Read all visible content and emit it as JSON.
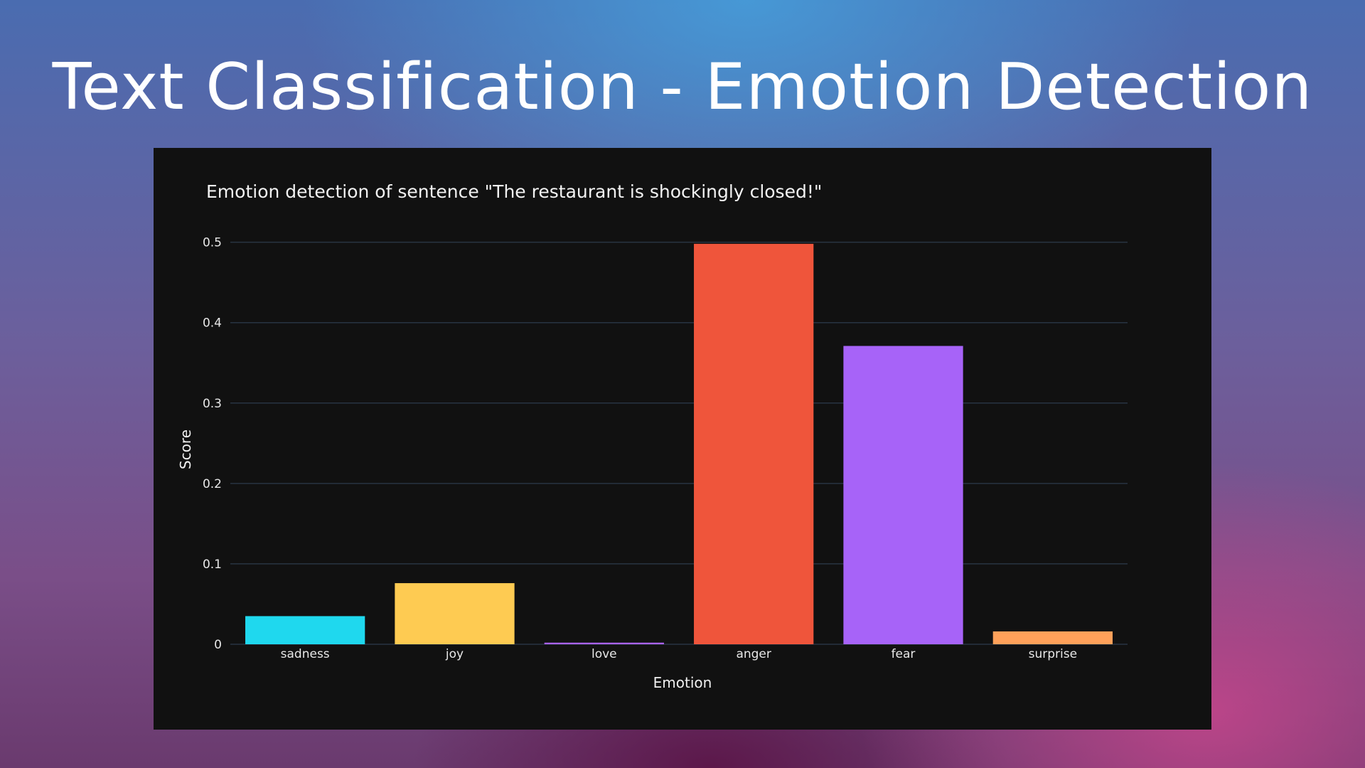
{
  "slide": {
    "title": "Text Classification - Emotion Detection"
  },
  "chart_data": {
    "type": "bar",
    "title": "Emotion detection of sentence \"The restaurant is shockingly closed!\"",
    "xlabel": "Emotion",
    "ylabel": "Score",
    "categories": [
      "sadness",
      "joy",
      "love",
      "anger",
      "fear",
      "surprise"
    ],
    "values": [
      0.035,
      0.076,
      0.002,
      0.498,
      0.371,
      0.016
    ],
    "colors": [
      "#1fd8ee",
      "#fecb52",
      "#ab63fa",
      "#ef553b",
      "#a763f8",
      "#ffa15a"
    ],
    "ylim": [
      0,
      0.52
    ],
    "yticks": [
      0,
      0.1,
      0.2,
      0.3,
      0.4,
      0.5
    ],
    "ytick_labels": [
      "0",
      "0.1",
      "0.2",
      "0.3",
      "0.4",
      "0.5"
    ],
    "grid": true,
    "background": "#111111"
  }
}
